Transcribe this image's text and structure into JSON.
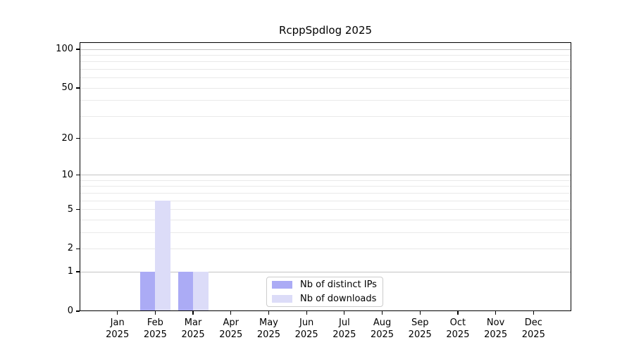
{
  "figure": {
    "title": "RcppSpdlog 2025"
  },
  "chart_data": {
    "type": "bar",
    "title": "RcppSpdlog 2025",
    "year_label": "2025",
    "categories": [
      "Jan",
      "Feb",
      "Mar",
      "Apr",
      "May",
      "Jun",
      "Jul",
      "Aug",
      "Sep",
      "Oct",
      "Nov",
      "Dec"
    ],
    "series": [
      {
        "name": "Nb of distinct IPs",
        "color": "#ababf5",
        "values": [
          0,
          1,
          1,
          0,
          0,
          0,
          0,
          0,
          0,
          0,
          0,
          0
        ]
      },
      {
        "name": "Nb of downloads",
        "color": "#dcdcf8",
        "values": [
          0,
          6,
          1,
          0,
          0,
          0,
          0,
          0,
          0,
          0,
          0,
          0
        ]
      }
    ],
    "xlabel": "",
    "ylabel": "",
    "yscale": "log1p",
    "ylim": [
      0,
      100
    ],
    "yticks": [
      0,
      1,
      2,
      5,
      10,
      20,
      50,
      100
    ],
    "gridlines": {
      "strong": [
        1,
        10,
        100
      ],
      "light": [
        2,
        3,
        4,
        5,
        6,
        7,
        8,
        9,
        20,
        30,
        40,
        50,
        60,
        70,
        80,
        90
      ]
    },
    "grid": true,
    "legend_position": "inside-bottom-center"
  }
}
